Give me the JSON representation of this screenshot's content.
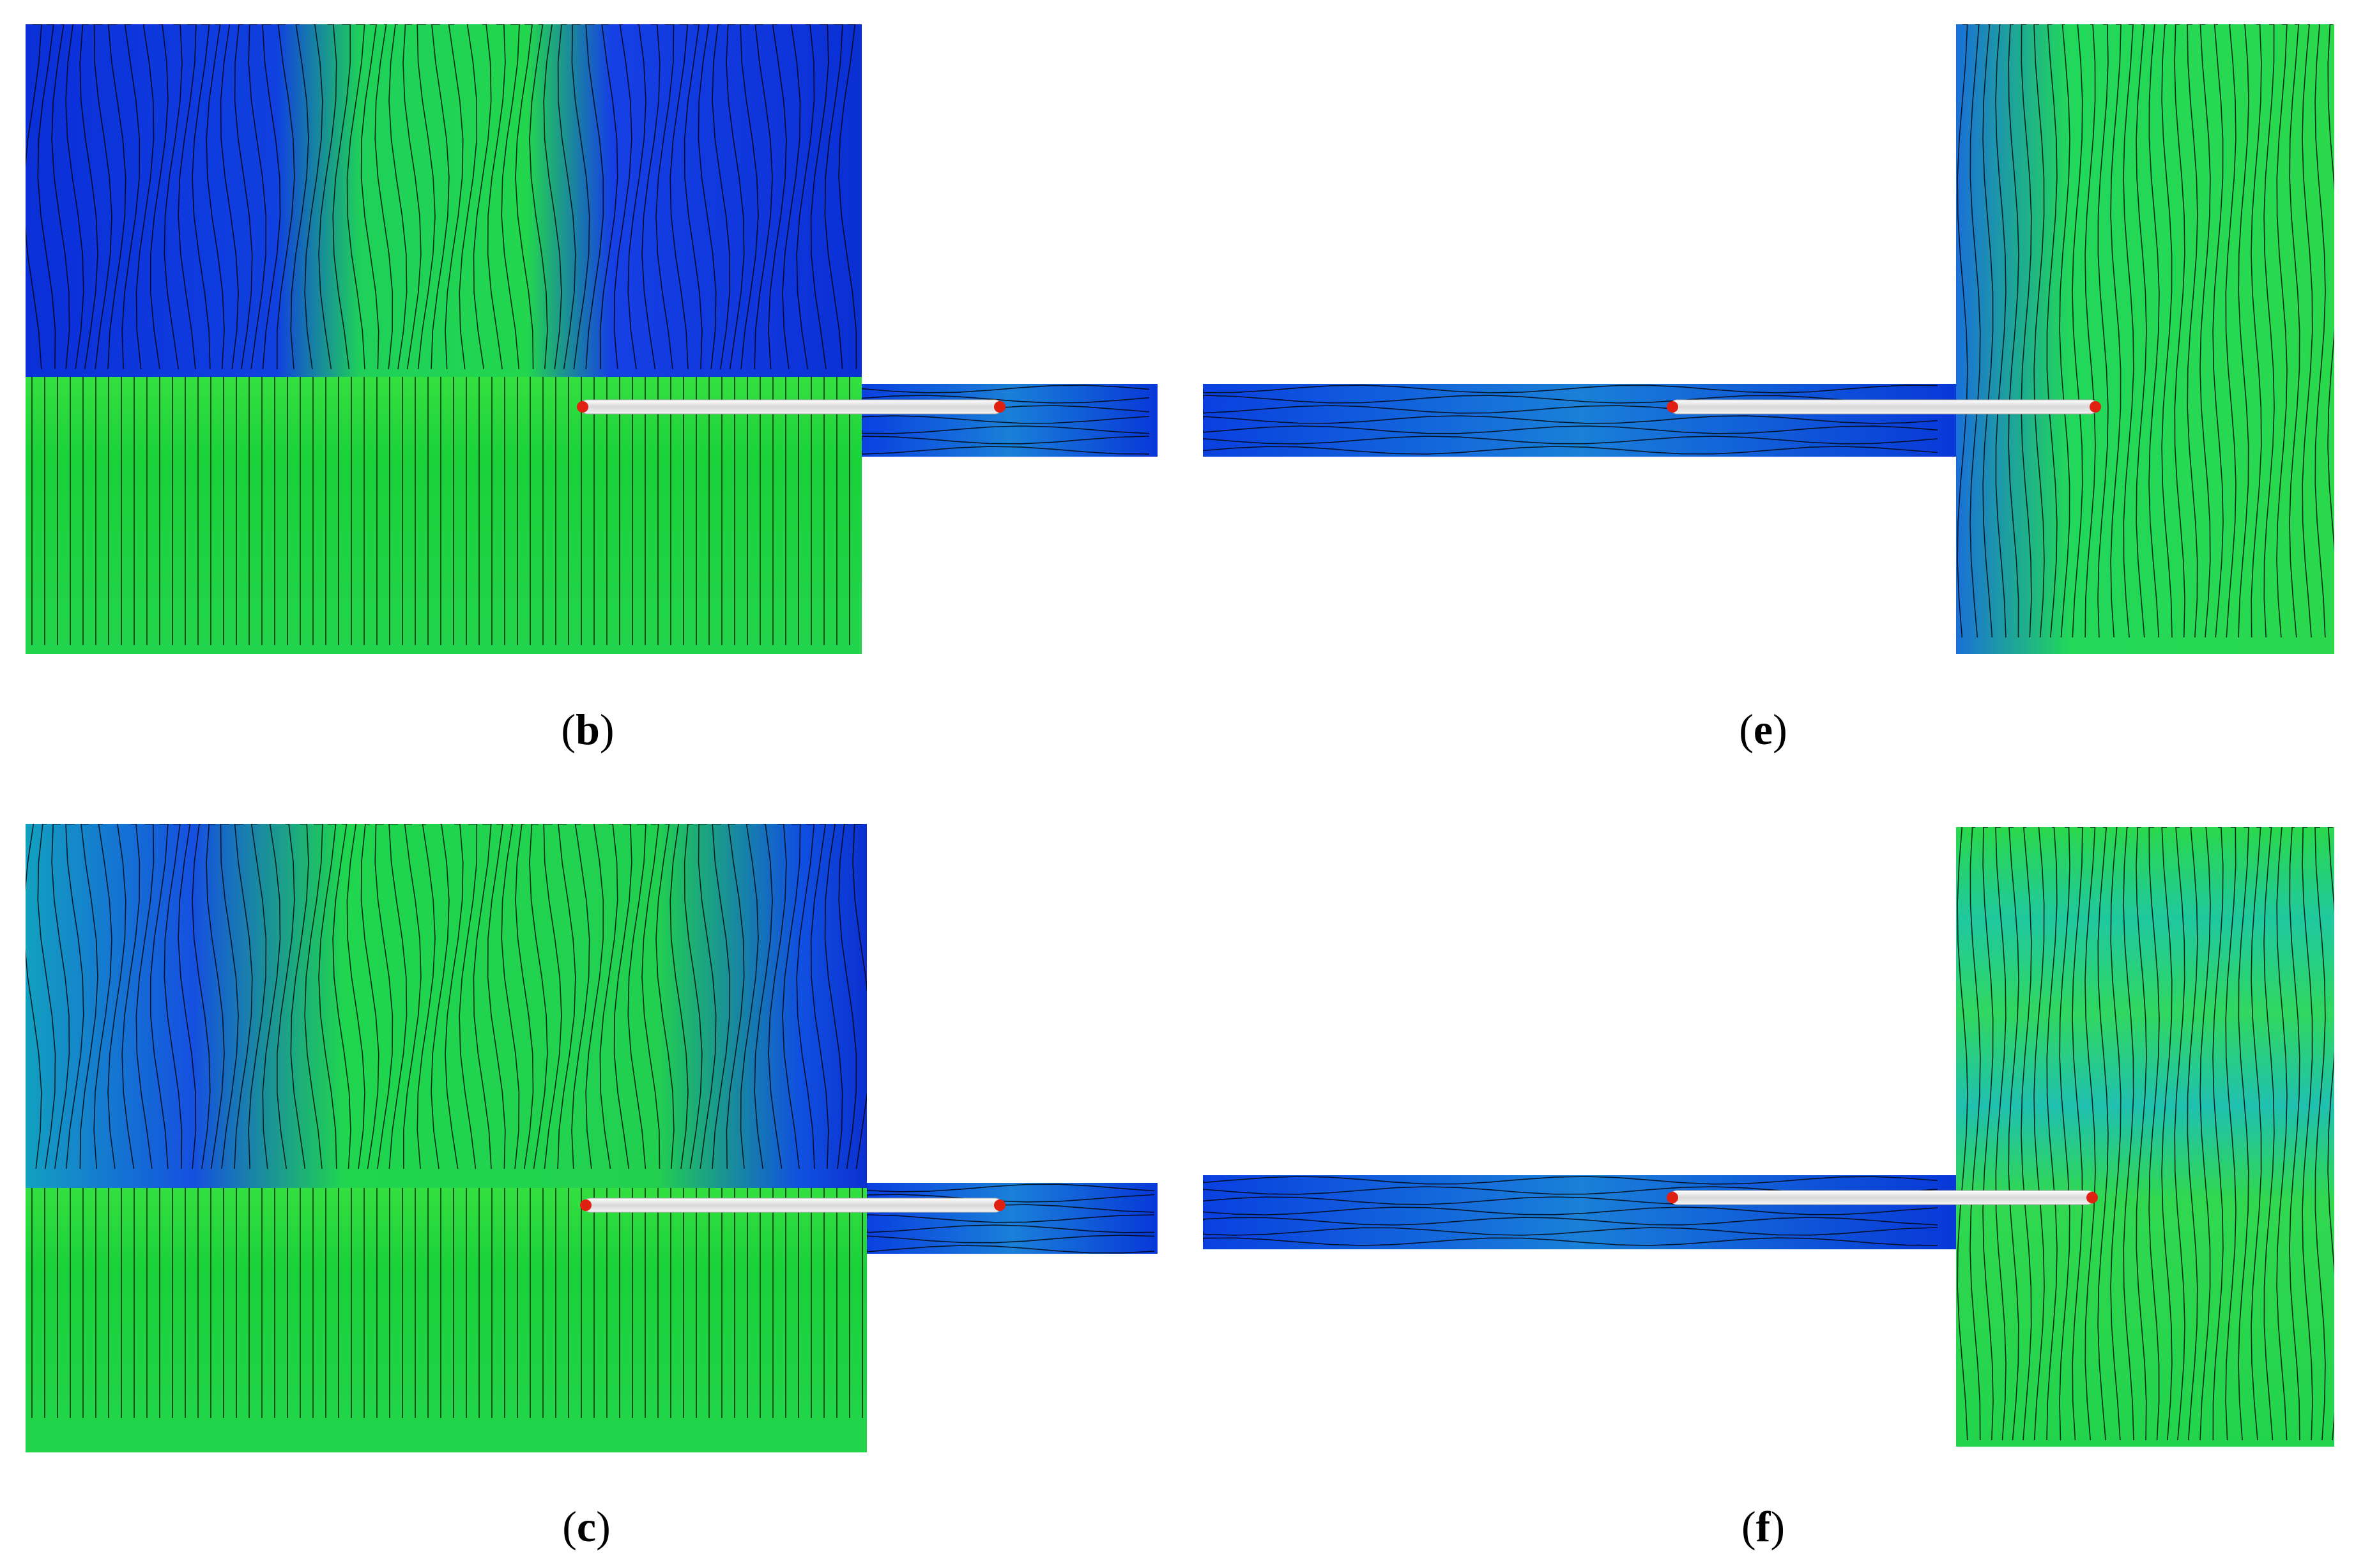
{
  "panels": [
    {
      "open": "(",
      "letter": "b",
      "close": ")"
    },
    {
      "open": "(",
      "letter": "e",
      "close": ")"
    },
    {
      "open": "(",
      "letter": "c",
      "close": ")"
    },
    {
      "open": "(",
      "letter": "f",
      "close": ")"
    }
  ]
}
